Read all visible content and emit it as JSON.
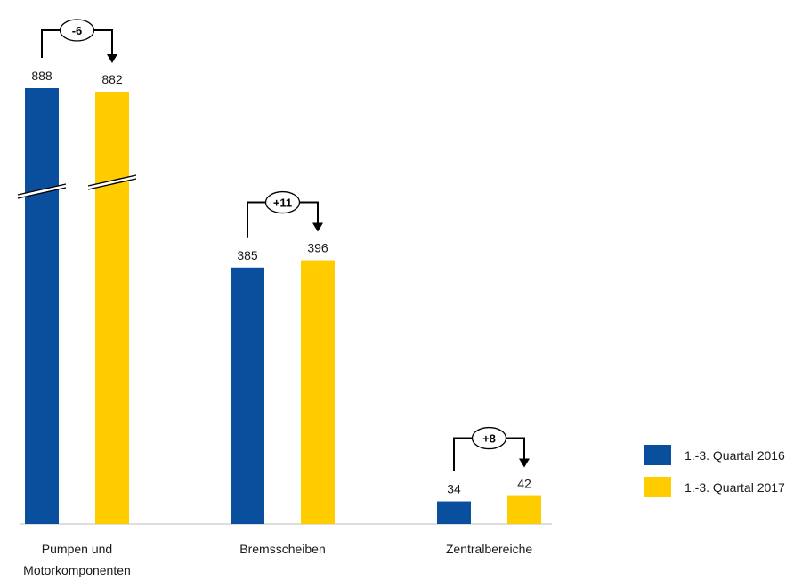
{
  "chart_data": {
    "type": "bar",
    "categories": [
      "Pumpen und Motorkomponenten",
      "Bremsscheiben",
      "Zentralbereiche"
    ],
    "category_lines": [
      [
        "Pumpen und",
        "Motorkomponenten"
      ],
      [
        "Bremsscheiben"
      ],
      [
        "Zentralbereiche"
      ]
    ],
    "series": [
      {
        "name": "1.-3. Quartal 2016",
        "values": [
          888,
          385,
          34
        ],
        "labels": [
          "888",
          "385",
          "34"
        ],
        "color": "#0a4f9e"
      },
      {
        "name": "1.-3. Quartal 2017",
        "values": [
          882,
          396,
          42
        ],
        "labels": [
          "882",
          "396",
          "42"
        ],
        "color": "#ffcc00"
      }
    ],
    "deltas": [
      "-6",
      "+11",
      "+8"
    ],
    "axis_break_on": [
      "Pumpen und Motorkomponenten"
    ],
    "legend_position": "right",
    "grid": false
  }
}
